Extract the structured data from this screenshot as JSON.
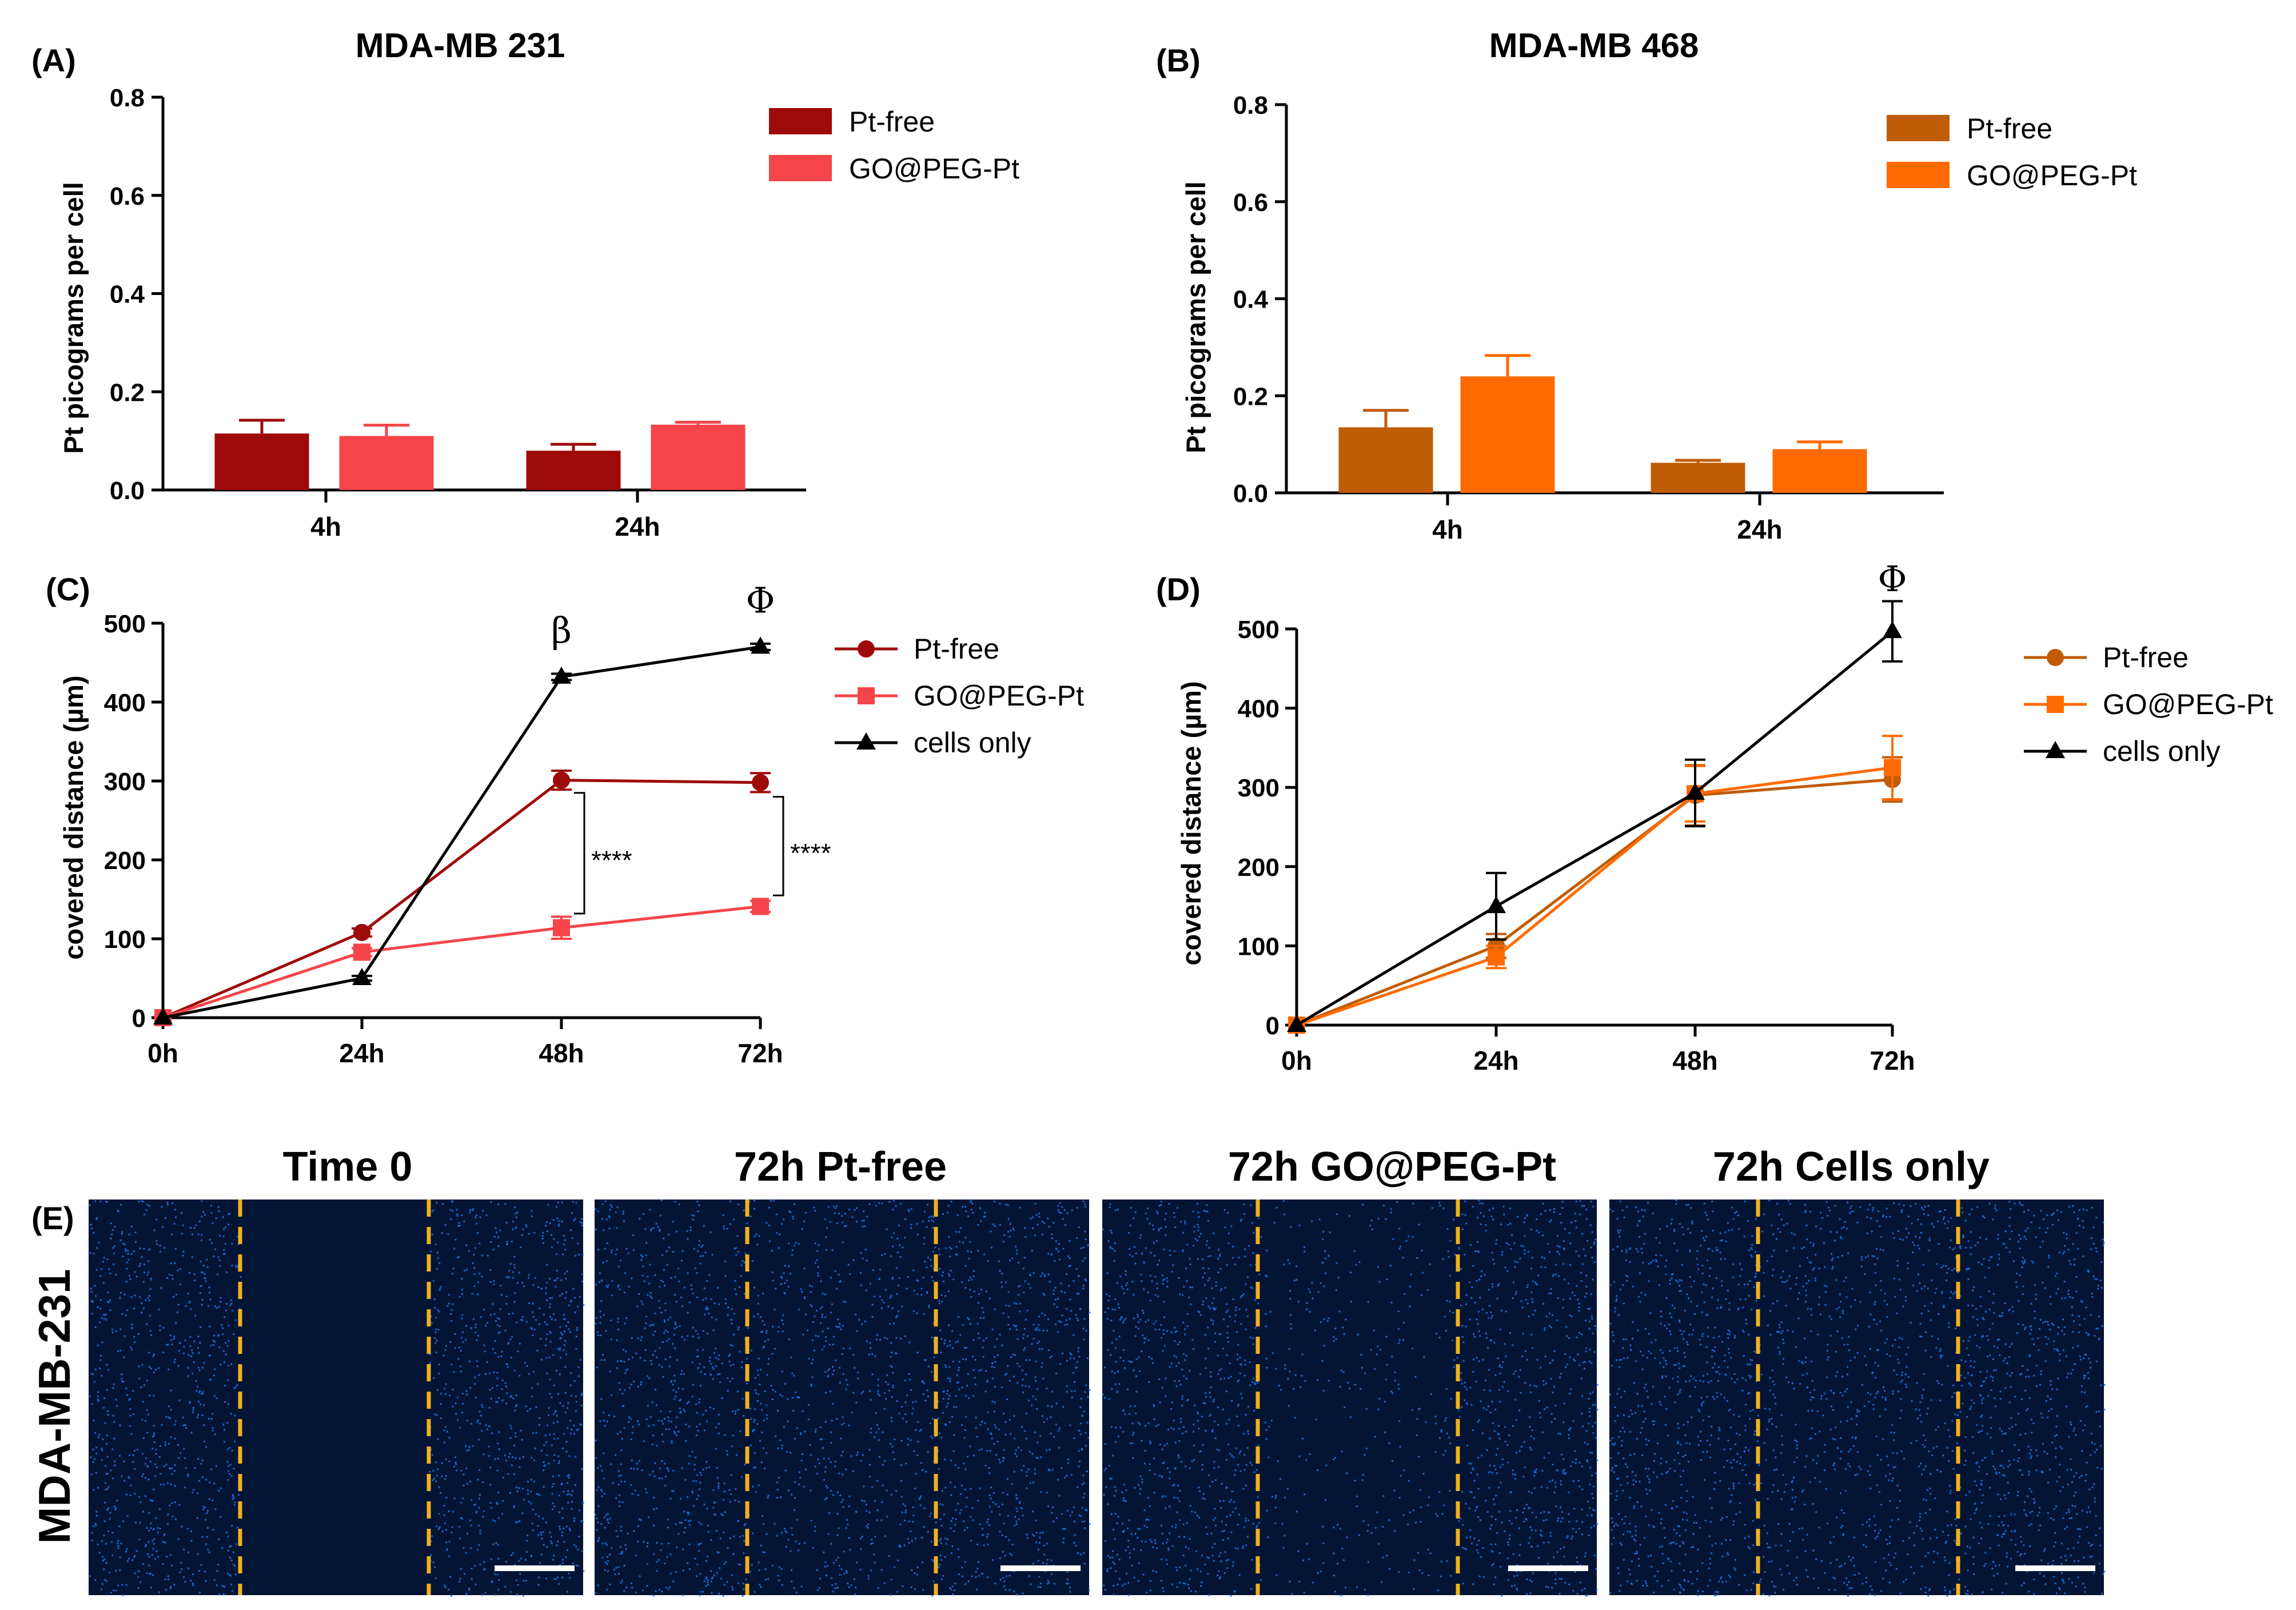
{
  "colors": {
    "pt_free_231": "#9e0a0a",
    "go_231": "#f5454a",
    "pt_free_468": "#c05c06",
    "go_468": "#ff6a00",
    "cells_only": "#000000",
    "scale_bar": "#ffffff",
    "gap_line": "#f0b020",
    "micrograph_bg": "#041434",
    "nuclei": "#1f74e0"
  },
  "panel_e": {
    "label": "(E)",
    "row_label": "MDA-MB-231",
    "images": [
      {
        "title": "Time 0"
      },
      {
        "title": "72h Pt-free"
      },
      {
        "title": "72h GO@PEG-Pt"
      },
      {
        "title": "72h Cells only"
      }
    ]
  },
  "chart_data": [
    {
      "panel": "(A)",
      "type": "bar",
      "title": "MDA-MB 231",
      "xlabel": "",
      "ylabel": "Pt picograms per cell",
      "ylim": [
        0,
        0.8
      ],
      "yticks": [
        "0.0",
        "0.2",
        "0.4",
        "0.6",
        "0.8"
      ],
      "categories": [
        "4h",
        "24h"
      ],
      "legend_position": "top-right",
      "series": [
        {
          "name": "Pt-free",
          "color": "#9e0a0a",
          "values": [
            0.115,
            0.08
          ],
          "errors": [
            0.027,
            0.013
          ]
        },
        {
          "name": "GO@PEG-Pt",
          "color": "#f5454a",
          "values": [
            0.11,
            0.133
          ],
          "errors": [
            0.022,
            0.005
          ]
        }
      ]
    },
    {
      "panel": "(B)",
      "type": "bar",
      "title": "MDA-MB 468",
      "xlabel": "",
      "ylabel": "Pt picograms per cell",
      "ylim": [
        0,
        0.8
      ],
      "yticks": [
        "0.0",
        "0.2",
        "0.4",
        "0.6",
        "0.8"
      ],
      "categories": [
        "4h",
        "24h"
      ],
      "legend_position": "top-right",
      "series": [
        {
          "name": "Pt-free",
          "color": "#c05c06",
          "values": [
            0.135,
            0.062
          ],
          "errors": [
            0.035,
            0.005
          ]
        },
        {
          "name": "GO@PEG-Pt",
          "color": "#ff6a00",
          "values": [
            0.24,
            0.09
          ],
          "errors": [
            0.043,
            0.015
          ]
        }
      ]
    },
    {
      "panel": "(C)",
      "type": "line",
      "title": "",
      "xlabel": "",
      "ylabel": "covered distance (µm)",
      "ylim": [
        0,
        500
      ],
      "yticks": [
        "0",
        "100",
        "200",
        "300",
        "400",
        "500"
      ],
      "categories": [
        "0h",
        "24h",
        "48h",
        "72h"
      ],
      "legend_position": "top-right",
      "series": [
        {
          "name": "Pt-free",
          "color": "#9e0a0a",
          "marker": "circle",
          "values": [
            0,
            108,
            301,
            298
          ],
          "errors": [
            0,
            5,
            12,
            12
          ]
        },
        {
          "name": "GO@PEG-Pt",
          "color": "#f5454a",
          "marker": "square",
          "values": [
            0,
            83,
            114,
            141
          ],
          "errors": [
            0,
            5,
            14,
            7
          ]
        },
        {
          "name": "cells only",
          "color": "#000000",
          "marker": "triangle",
          "values": [
            0,
            50,
            432,
            470
          ],
          "errors": [
            0,
            3,
            4,
            4
          ]
        }
      ],
      "annotations": [
        {
          "text": "β",
          "at": "48h"
        },
        {
          "text": "Φ",
          "at": "72h"
        },
        {
          "text": "****",
          "at": "48h"
        },
        {
          "text": "****",
          "at": "72h"
        }
      ]
    },
    {
      "panel": "(D)",
      "type": "line",
      "title": "",
      "xlabel": "",
      "ylabel": "covered distance (µm)",
      "ylim": [
        0,
        500
      ],
      "yticks": [
        "0",
        "100",
        "200",
        "300",
        "400",
        "500"
      ],
      "categories": [
        "0h",
        "24h",
        "48h",
        "72h"
      ],
      "legend_position": "right",
      "series": [
        {
          "name": "Pt-free",
          "color": "#c05c06",
          "marker": "circle",
          "values": [
            0,
            100,
            290,
            310
          ],
          "errors": [
            0,
            15,
            38,
            28
          ]
        },
        {
          "name": "GO@PEG-Pt",
          "color": "#ff6a00",
          "marker": "square",
          "values": [
            0,
            86,
            292,
            325
          ],
          "errors": [
            0,
            14,
            35,
            40
          ]
        },
        {
          "name": "cells only",
          "color": "#000000",
          "marker": "triangle",
          "values": [
            0,
            150,
            293,
            497
          ],
          "errors": [
            0,
            42,
            42,
            38
          ]
        }
      ],
      "annotations": [
        {
          "text": "Φ",
          "at": "72h"
        }
      ]
    }
  ]
}
